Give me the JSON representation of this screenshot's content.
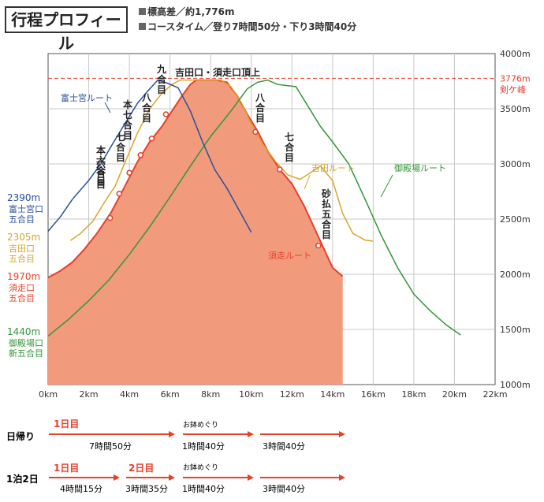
{
  "header": {
    "title": "行程プロフィール",
    "elevation_diff": "標高差／約1,776m",
    "course_time": "コースタイム／登り7時間50分・下り3時間40分"
  },
  "chart_data": {
    "type": "line",
    "xlabel": "",
    "ylabel": "",
    "xlim": [
      0,
      22
    ],
    "ylim": [
      1000,
      4000
    ],
    "x_ticks": [
      "0km",
      "2km",
      "4km",
      "6km",
      "8km",
      "10km",
      "12km",
      "14km",
      "16km",
      "18km",
      "20km",
      "22km"
    ],
    "y_ticks": [
      "1000m",
      "1500m",
      "2000m",
      "2500m",
      "3000m",
      "3500m",
      "4000m"
    ],
    "summit_label": "吉田口・須走口頂上",
    "summit_line": {
      "value": 3776,
      "label": "3776m",
      "sublabel": "剣ケ峰"
    },
    "series": [
      {
        "name": "須走ルート",
        "color": "#e8402b",
        "fill": "#f29a7c",
        "points": [
          [
            0,
            1970
          ],
          [
            0.6,
            2030
          ],
          [
            1.2,
            2110
          ],
          [
            1.8,
            2230
          ],
          [
            2.4,
            2370
          ],
          [
            3.1,
            2560
          ],
          [
            3.7,
            2770
          ],
          [
            4.4,
            3020
          ],
          [
            5.0,
            3200
          ],
          [
            5.6,
            3340
          ],
          [
            6.1,
            3480
          ],
          [
            6.6,
            3620
          ],
          [
            7.0,
            3720
          ],
          [
            7.3,
            3760
          ],
          [
            7.8,
            3760
          ],
          [
            8.3,
            3760
          ],
          [
            8.8,
            3740
          ],
          [
            9.3,
            3620
          ],
          [
            9.8,
            3450
          ],
          [
            10.3,
            3300
          ],
          [
            10.8,
            3120
          ],
          [
            11.4,
            2950
          ],
          [
            12.0,
            2820
          ],
          [
            12.6,
            2620
          ],
          [
            13.1,
            2420
          ],
          [
            13.6,
            2220
          ],
          [
            14.0,
            2060
          ],
          [
            14.5,
            1980
          ]
        ]
      },
      {
        "name": "富士宮ルート",
        "color": "#2a4f9c",
        "points": [
          [
            0,
            2390
          ],
          [
            0.6,
            2520
          ],
          [
            1.2,
            2680
          ],
          [
            2.0,
            2850
          ],
          [
            2.6,
            3000
          ],
          [
            3.2,
            3190
          ],
          [
            3.8,
            3370
          ],
          [
            4.4,
            3550
          ],
          [
            4.9,
            3660
          ],
          [
            5.4,
            3760
          ],
          [
            5.9,
            3730
          ],
          [
            6.4,
            3690
          ],
          [
            7.0,
            3480
          ],
          [
            7.6,
            3200
          ],
          [
            8.2,
            2950
          ],
          [
            8.8,
            2780
          ],
          [
            9.4,
            2580
          ],
          [
            10.0,
            2380
          ]
        ]
      },
      {
        "name": "吉田ルート",
        "color": "#d8a62a",
        "points": [
          [
            1.1,
            2305
          ],
          [
            1.6,
            2370
          ],
          [
            2.2,
            2480
          ],
          [
            2.8,
            2660
          ],
          [
            3.3,
            2800
          ],
          [
            3.8,
            3020
          ],
          [
            4.4,
            3280
          ],
          [
            5.0,
            3500
          ],
          [
            5.6,
            3640
          ],
          [
            6.1,
            3720
          ],
          [
            6.5,
            3760
          ],
          [
            7.5,
            3760
          ],
          [
            8.5,
            3760
          ],
          [
            9.0,
            3700
          ],
          [
            9.5,
            3560
          ],
          [
            10.1,
            3320
          ],
          [
            10.6,
            3170
          ],
          [
            11.2,
            3020
          ],
          [
            11.8,
            2900
          ],
          [
            12.4,
            2860
          ],
          [
            12.9,
            2920
          ],
          [
            13.4,
            2980
          ],
          [
            14.0,
            2850
          ],
          [
            14.5,
            2550
          ],
          [
            15.0,
            2370
          ],
          [
            15.6,
            2310
          ],
          [
            16.0,
            2300
          ]
        ]
      },
      {
        "name": "御殿場ルート",
        "color": "#34963a",
        "points": [
          [
            0,
            1440
          ],
          [
            1.0,
            1590
          ],
          [
            2.0,
            1760
          ],
          [
            3.0,
            1950
          ],
          [
            4.0,
            2180
          ],
          [
            5.0,
            2430
          ],
          [
            6.0,
            2700
          ],
          [
            7.0,
            2980
          ],
          [
            8.0,
            3250
          ],
          [
            9.0,
            3480
          ],
          [
            9.8,
            3680
          ],
          [
            10.3,
            3740
          ],
          [
            10.8,
            3760
          ],
          [
            11.3,
            3720
          ],
          [
            12.2,
            3700
          ],
          [
            12.8,
            3520
          ],
          [
            13.4,
            3340
          ],
          [
            14.0,
            3200
          ],
          [
            14.8,
            3000
          ],
          [
            15.6,
            2680
          ],
          [
            16.4,
            2350
          ],
          [
            17.2,
            2060
          ],
          [
            18.0,
            1820
          ],
          [
            18.8,
            1670
          ],
          [
            19.6,
            1540
          ],
          [
            20.3,
            1450
          ]
        ]
      }
    ],
    "start_labels": [
      {
        "elev": "2390m",
        "lines": [
          "富士宮口",
          "五合目"
        ],
        "color": "#2a4f9c"
      },
      {
        "elev": "2305m",
        "lines": [
          "吉田口",
          "五合目"
        ],
        "color": "#d8a62a"
      },
      {
        "elev": "1970m",
        "lines": [
          "須走口",
          "五合目"
        ],
        "color": "#e8402b"
      },
      {
        "elev": "1440m",
        "lines": [
          "御殿場口",
          "新五合目"
        ],
        "color": "#34963a"
      }
    ],
    "stations": [
      {
        "label": "六合目",
        "color": "#e8402b"
      },
      {
        "label": "七合目",
        "color": "#e8402b"
      },
      {
        "label": "本六合目",
        "color": "#e8402b"
      },
      {
        "label": "本七合目",
        "color": "#e8402b"
      },
      {
        "label": "八合目",
        "color": "#e8402b"
      },
      {
        "label": "九合目",
        "color": "#e8402b"
      },
      {
        "label": "八合目",
        "color": "#e8402b"
      },
      {
        "label": "七合目",
        "color": "#e8402b"
      },
      {
        "label": "砂払五合目",
        "color": "#e8402b"
      }
    ],
    "route_labels": [
      "富士宮ルート",
      "吉田ルート",
      "御殿場ルート",
      "須走ルート"
    ]
  },
  "schedule": {
    "rows": [
      {
        "label": "日帰り",
        "segments": [
          {
            "day": "1日目",
            "time": "7時間50分"
          },
          {
            "sub": "お鉢めぐり",
            "time": "1時間40分"
          },
          {
            "time": "3時間40分"
          }
        ]
      },
      {
        "label": "1泊2日",
        "segments": [
          {
            "day": "1日目",
            "time": "4時間15分"
          },
          {
            "day": "2日目",
            "time": "3時間35分"
          },
          {
            "sub": "お鉢めぐり",
            "time": "1時間40分"
          },
          {
            "time": "3時間40分"
          }
        ]
      }
    ]
  }
}
